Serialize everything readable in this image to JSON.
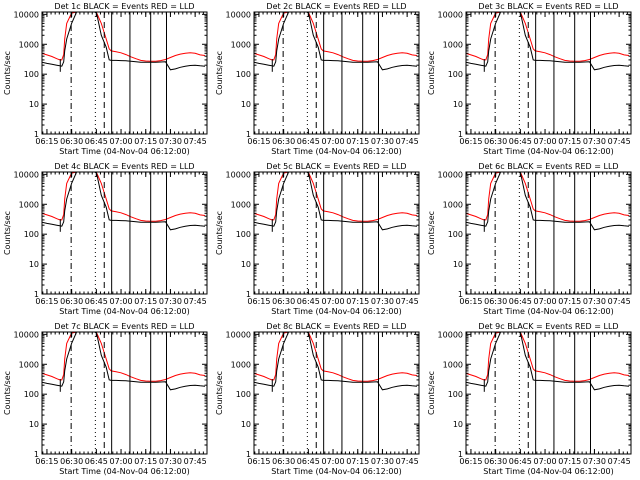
{
  "chart_data": {
    "type": "line",
    "layout": "3x3 grid of identical-format panels",
    "common": {
      "xlabel": "Start Time (04-Nov-04 06:12:00)",
      "ylabel": "Counts/sec",
      "x_ticks": [
        "06:15",
        "06:30",
        "06:45",
        "07:00",
        "07:15",
        "07:30",
        "07:45"
      ],
      "x_tick_hours": [
        6.25,
        6.5,
        6.75,
        7.0,
        7.25,
        7.5,
        7.75
      ],
      "xlim_hours": [
        6.2,
        7.87
      ],
      "y_scale": "log",
      "ylim": [
        1,
        12000
      ],
      "y_ticks": [
        "1",
        "10",
        "100",
        "1000",
        "10000"
      ],
      "y_tick_values": [
        1,
        10,
        100,
        1000,
        10000
      ],
      "grid": false,
      "colors": {
        "events": "#000000",
        "lld": "#ff0000",
        "axes": "#000000",
        "background": "#ffffff"
      }
    },
    "panels": [
      {
        "title": "Det 1c BLACK = Events  RED = LLD"
      },
      {
        "title": "Det 2c BLACK = Events  RED = LLD"
      },
      {
        "title": "Det 3c BLACK = Events  RED = LLD"
      },
      {
        "title": "Det 4c BLACK = Events  RED = LLD"
      },
      {
        "title": "Det 5c BLACK = Events  RED = LLD"
      },
      {
        "title": "Det 6c BLACK = Events  RED = LLD"
      },
      {
        "title": "Det 7c BLACK = Events  RED = LLD"
      },
      {
        "title": "Det 8c BLACK = Events  RED = LLD"
      },
      {
        "title": "Det 9c BLACK = Events  RED = LLD"
      }
    ],
    "series": [
      {
        "color": "#ff0000",
        "x": [
          6.2,
          6.25,
          6.3,
          6.35,
          6.38,
          6.4,
          6.42,
          6.43,
          6.45,
          6.5,
          6.55,
          6.6,
          6.65,
          6.7,
          6.75,
          6.8,
          6.85,
          6.88,
          6.9,
          6.95,
          7.0,
          7.05,
          7.1,
          7.15,
          7.2,
          7.25,
          7.3,
          7.35,
          7.4,
          7.45,
          7.5,
          7.55,
          7.6,
          7.65,
          7.7,
          7.75,
          7.8,
          7.85
        ],
        "y": [
          500,
          440,
          390,
          330,
          300,
          300,
          450,
          1500,
          5000,
          11000,
          12000,
          12000,
          12000,
          12000,
          12000,
          5000,
          1500,
          700,
          600,
          560,
          520,
          450,
          380,
          330,
          290,
          275,
          270,
          270,
          285,
          310,
          360,
          420,
          470,
          500,
          520,
          500,
          440,
          420
        ]
      },
      {
        "color": "#000000",
        "x": [
          6.2,
          6.25,
          6.3,
          6.35,
          6.38,
          6.4,
          6.42,
          6.43,
          6.45,
          6.5,
          6.55,
          6.6,
          6.65,
          6.7,
          6.75,
          6.8,
          6.85,
          6.88,
          6.9,
          6.95,
          7.0,
          7.05,
          7.1,
          7.15,
          7.2,
          7.25,
          7.3,
          7.35,
          7.4,
          7.45,
          7.5,
          7.55,
          7.6,
          7.65,
          7.7,
          7.75,
          7.8,
          7.85
        ],
        "y": [
          250,
          230,
          215,
          200,
          190,
          185,
          260,
          600,
          1500,
          5000,
          12000,
          12000,
          12000,
          12000,
          12000,
          2000,
          800,
          300,
          290,
          290,
          285,
          280,
          270,
          260,
          250,
          250,
          250,
          250,
          255,
          260,
          140,
          150,
          170,
          185,
          195,
          200,
          190,
          185
        ]
      }
    ],
    "vertical_markers": [
      {
        "x": 6.385,
        "style": "solid",
        "ymin": 120,
        "ymax": 320
      },
      {
        "x": 6.495,
        "style": "dash-dot"
      },
      {
        "x": 6.74,
        "style": "dotted"
      },
      {
        "x": 6.83,
        "style": "dashed"
      },
      {
        "x": 6.905,
        "style": "solid"
      },
      {
        "x": 7.09,
        "style": "solid"
      },
      {
        "x": 7.3,
        "style": "solid"
      },
      {
        "x": 7.46,
        "style": "solid"
      }
    ]
  }
}
